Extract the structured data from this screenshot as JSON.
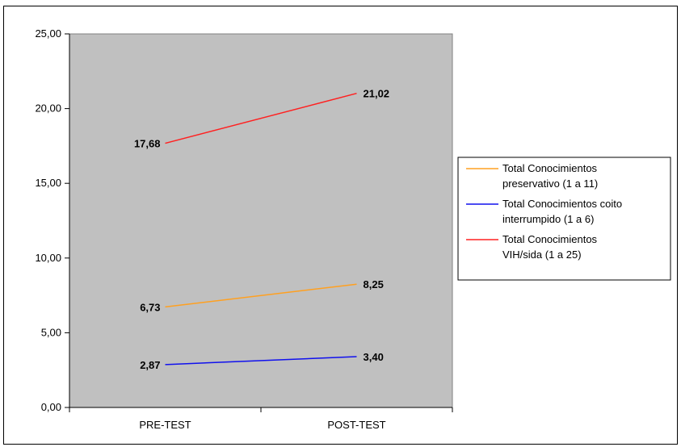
{
  "chart_data": {
    "type": "line",
    "categories": [
      "PRE-TEST",
      "POST-TEST"
    ],
    "ylim": [
      0,
      25
    ],
    "yticks": [
      "0,00",
      "5,00",
      "10,00",
      "15,00",
      "20,00",
      "25,00"
    ],
    "plot_background": "#c0c0c0",
    "grid": false,
    "legend_position": "right",
    "series": [
      {
        "name_lines": [
          "Total Conocimientos",
          "preservativo (1 a 11)"
        ],
        "color": "#ffa020",
        "values": [
          6.73,
          8.25
        ],
        "labels": [
          "6,73",
          "8,25"
        ]
      },
      {
        "name_lines": [
          "Total Conocimientos coito",
          "interrumpido (1 a 6)"
        ],
        "color": "#1010ee",
        "values": [
          2.87,
          3.4
        ],
        "labels": [
          "2,87",
          "3,40"
        ]
      },
      {
        "name_lines": [
          "Total Conocimientos",
          "VIH/sida (1 a 25)"
        ],
        "color": "#ff2020",
        "values": [
          17.68,
          21.02
        ],
        "labels": [
          "17,68",
          "21,02"
        ]
      }
    ]
  }
}
